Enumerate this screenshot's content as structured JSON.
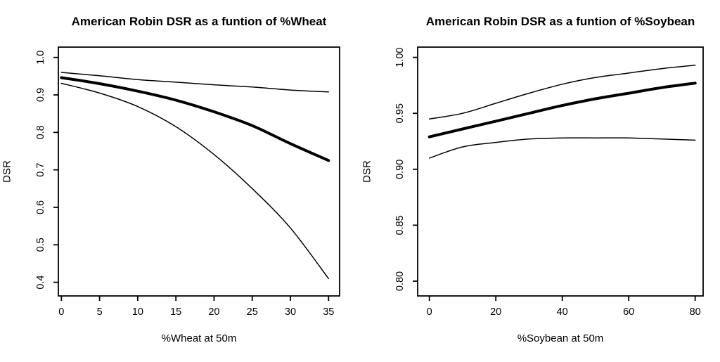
{
  "figure": {
    "background_color": "#ffffff",
    "ink_color": "#000000"
  },
  "chart_data": [
    {
      "type": "line",
      "title": "American Robin DSR as a funtion of %Wheat",
      "xlabel": "%Wheat at 50m",
      "ylabel": "DSR",
      "grid": false,
      "legend": null,
      "x": [
        0,
        5,
        10,
        15,
        20,
        25,
        30,
        35
      ],
      "series": [
        {
          "name": "mean-estimate",
          "style": "thick",
          "values": [
            0.946,
            0.93,
            0.91,
            0.886,
            0.855,
            0.818,
            0.77,
            0.725
          ]
        },
        {
          "name": "upper-confidence-limit",
          "style": "thin",
          "values": [
            0.96,
            0.951,
            0.941,
            0.934,
            0.927,
            0.921,
            0.913,
            0.908
          ]
        },
        {
          "name": "lower-confidence-limit",
          "style": "thin",
          "values": [
            0.931,
            0.905,
            0.869,
            0.815,
            0.741,
            0.65,
            0.545,
            0.41
          ]
        }
      ],
      "x_ticks": {
        "values": [
          0,
          5,
          10,
          15,
          20,
          25,
          30,
          35
        ],
        "labels": [
          "0",
          "5",
          "10",
          "15",
          "20",
          "25",
          "30",
          "35"
        ]
      },
      "y_ticks": {
        "values": [
          0.4,
          0.5,
          0.6,
          0.7,
          0.8,
          0.9,
          1.0
        ],
        "labels": [
          "0.4",
          "0.5",
          "0.6",
          "0.7",
          "0.8",
          "0.9",
          "1.0"
        ]
      },
      "x_window": [
        -0.4,
        36.45
      ],
      "y_window": [
        0.3636,
        1.0276
      ]
    },
    {
      "type": "line",
      "title": "American Robin DSR as a funtion of %Soybean",
      "xlabel": "%Soybean at 50m",
      "ylabel": "DSR",
      "grid": false,
      "legend": null,
      "x": [
        0,
        10,
        20,
        30,
        40,
        50,
        60,
        70,
        80
      ],
      "series": [
        {
          "name": "mean-estimate",
          "style": "thick",
          "values": [
            0.929,
            0.936,
            0.943,
            0.95,
            0.957,
            0.963,
            0.968,
            0.973,
            0.977
          ]
        },
        {
          "name": "upper-confidence-limit",
          "style": "thin",
          "values": [
            0.945,
            0.95,
            0.959,
            0.968,
            0.976,
            0.982,
            0.986,
            0.99,
            0.993
          ]
        },
        {
          "name": "lower-confidence-limit",
          "style": "thin",
          "values": [
            0.91,
            0.92,
            0.924,
            0.927,
            0.928,
            0.928,
            0.928,
            0.927,
            0.926
          ]
        }
      ],
      "x_ticks": {
        "values": [
          0,
          20,
          40,
          60,
          80
        ],
        "labels": [
          "0",
          "20",
          "40",
          "60",
          "80"
        ]
      },
      "y_ticks": {
        "values": [
          0.8,
          0.85,
          0.9,
          0.95,
          1.0
        ],
        "labels": [
          "0.80",
          "0.85",
          "0.90",
          "0.95",
          "1.00"
        ]
      },
      "x_window": [
        -3.53,
        82.4
      ],
      "y_window": [
        0.7868,
        1.0092
      ]
    }
  ]
}
